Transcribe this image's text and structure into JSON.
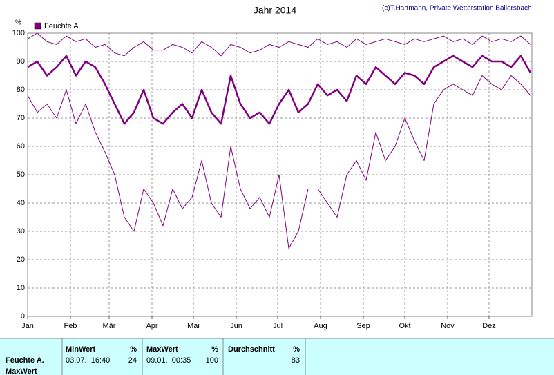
{
  "chart_data": {
    "type": "line",
    "title": "Jahr 2014",
    "credit": "(c)T.Hartmann, Private Wetterstation Ballersbach",
    "y_label": "%",
    "x": [
      0,
      7,
      14,
      21,
      28,
      35,
      42,
      49,
      56,
      63,
      70,
      77,
      84,
      91,
      98,
      105,
      112,
      119,
      126,
      133,
      140,
      147,
      154,
      161,
      168,
      175,
      182,
      189,
      196,
      203,
      210,
      217,
      224,
      231,
      238,
      245,
      252,
      259,
      266,
      273,
      280,
      287,
      294,
      301,
      308,
      315,
      322,
      329,
      336,
      343,
      350,
      357,
      364
    ],
    "xlim": [
      0,
      365
    ],
    "xticks": [
      {
        "value": 0,
        "label": "Jan"
      },
      {
        "value": 31,
        "label": "Feb"
      },
      {
        "value": 59,
        "label": "Mär"
      },
      {
        "value": 90,
        "label": "Apr"
      },
      {
        "value": 120,
        "label": "Mai"
      },
      {
        "value": 151,
        "label": "Jun"
      },
      {
        "value": 181,
        "label": "Jul"
      },
      {
        "value": 212,
        "label": "Aug"
      },
      {
        "value": 243,
        "label": "Sep"
      },
      {
        "value": 273,
        "label": "Okt"
      },
      {
        "value": 304,
        "label": "Nov"
      },
      {
        "value": 334,
        "label": "Dez"
      }
    ],
    "ylim": [
      0,
      100
    ],
    "yticks": [
      0,
      10,
      20,
      30,
      40,
      50,
      60,
      70,
      80,
      90,
      100
    ],
    "grid": true,
    "series": [
      {
        "name": "Feuchte A.",
        "color": "#800080",
        "values": [
          88,
          90,
          85,
          88,
          92,
          85,
          90,
          88,
          82,
          75,
          68,
          72,
          80,
          70,
          68,
          72,
          75,
          70,
          80,
          72,
          68,
          85,
          75,
          70,
          72,
          68,
          75,
          80,
          72,
          75,
          82,
          78,
          80,
          76,
          85,
          82,
          88,
          85,
          82,
          86,
          85,
          82,
          88,
          90,
          92,
          90,
          88,
          92,
          90,
          90,
          88,
          92,
          86
        ]
      },
      {
        "color": "#800080",
        "values": [
          98,
          100,
          97,
          96,
          99,
          97,
          98,
          95,
          96,
          93,
          92,
          95,
          97,
          94,
          94,
          96,
          95,
          93,
          97,
          95,
          92,
          96,
          95,
          93,
          94,
          96,
          95,
          97,
          96,
          95,
          98,
          96,
          97,
          95,
          98,
          96,
          97,
          98,
          97,
          96,
          98,
          97,
          98,
          99,
          97,
          98,
          96,
          99,
          97,
          98,
          97,
          99,
          96
        ]
      },
      {
        "color": "#800080",
        "values": [
          78,
          72,
          75,
          70,
          80,
          68,
          75,
          65,
          58,
          50,
          35,
          30,
          45,
          40,
          32,
          45,
          38,
          42,
          55,
          40,
          35,
          60,
          45,
          38,
          42,
          35,
          50,
          24,
          30,
          45,
          45,
          40,
          35,
          50,
          55,
          48,
          65,
          55,
          60,
          70,
          62,
          55,
          75,
          80,
          82,
          80,
          78,
          85,
          82,
          80,
          85,
          82,
          78
        ]
      }
    ]
  },
  "table": {
    "row_labels": [
      "Feuchte A.",
      "MaxWert"
    ],
    "columns": [
      {
        "header": "MinWert",
        "unit": "%",
        "time": "03.07.  16:40",
        "value": 24
      },
      {
        "header": "MaxWert",
        "unit": "%",
        "time": "09.01.  00:35",
        "value": 100
      },
      {
        "header": "Durchschnitt",
        "unit": "%",
        "value": 83
      }
    ]
  }
}
